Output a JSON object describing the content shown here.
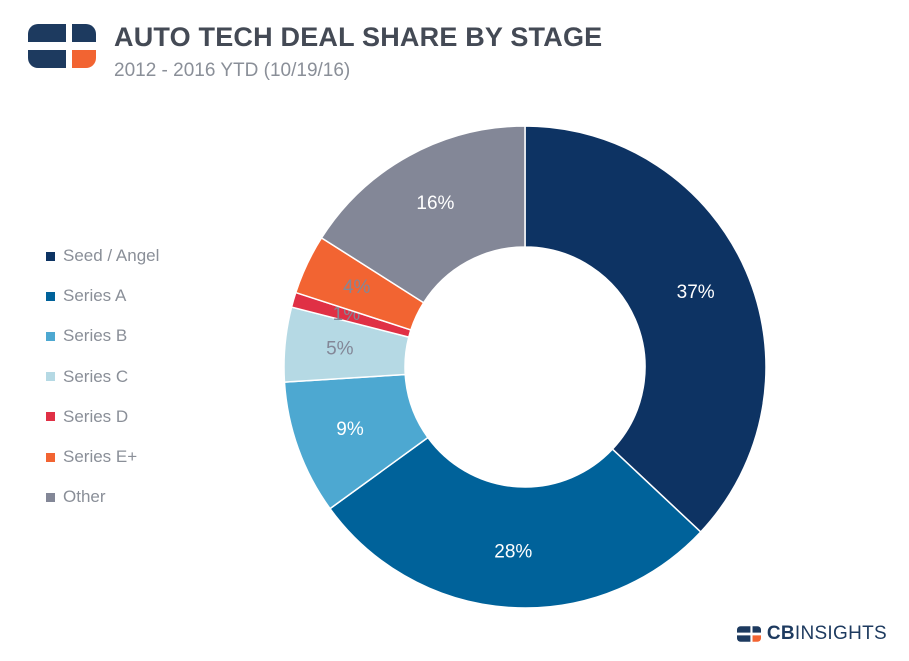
{
  "header": {
    "title": "AUTO TECH DEAL SHARE BY STAGE",
    "subtitle": "2012 - 2016 YTD (10/19/16)"
  },
  "brand": {
    "bold": "CB",
    "light": "INSIGHTS"
  },
  "colors": {
    "title": "#444a55",
    "subtitle": "#8a8f98",
    "logo_navy": "#1d3a5f",
    "logo_orange": "#f26432"
  },
  "chart_data": {
    "type": "pie",
    "variant": "donut",
    "title": "AUTO TECH DEAL SHARE BY STAGE",
    "subtitle": "2012 - 2016 YTD (10/19/16)",
    "legend_position": "left",
    "categories": [
      "Seed / Angel",
      "Series A",
      "Series B",
      "Series C",
      "Series D",
      "Series E+",
      "Other"
    ],
    "values": [
      37,
      28,
      9,
      5,
      1,
      4,
      16
    ],
    "labels": [
      "37%",
      "28%",
      "9%",
      "5%",
      "1%",
      "4%",
      "16%"
    ],
    "colors": [
      "#0d3363",
      "#00629a",
      "#4da8d1",
      "#b5d9e4",
      "#e03045",
      "#f26432",
      "#838797"
    ],
    "label_colors": [
      "#ffffff",
      "#ffffff",
      "#ffffff",
      "#838797",
      "#838797",
      "#838797",
      "#ffffff"
    ]
  }
}
